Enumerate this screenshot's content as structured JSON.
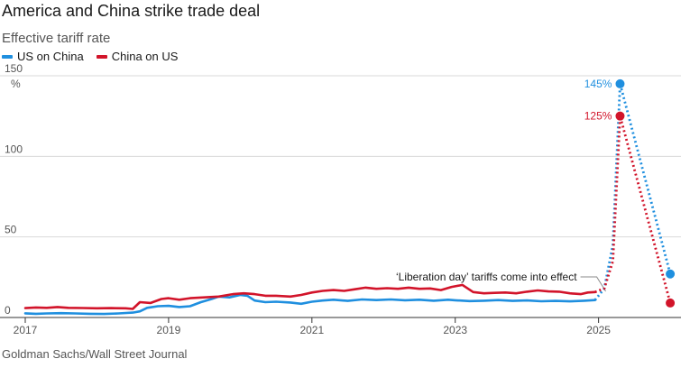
{
  "header": {
    "title": "America and China strike trade deal",
    "subtitle": "Effective tariff rate"
  },
  "footer": {
    "source": "Goldman Sachs/Wall Street Journal"
  },
  "colors": {
    "us_on_china": "#1f8fdf",
    "china_on_us": "#d2142a",
    "grid": "#d9d9d9",
    "axis": "#333333"
  },
  "chart_data": {
    "type": "line",
    "title": "America and China strike trade deal",
    "subtitle": "Effective tariff rate",
    "ylabel": "%",
    "xlim": [
      2017.0,
      2026.15
    ],
    "ylim": [
      0,
      150
    ],
    "yticks": [
      0,
      50,
      100,
      150
    ],
    "xticks": [
      2017,
      2019,
      2021,
      2023,
      2025
    ],
    "grid": true,
    "legend": "top-left",
    "series": [
      {
        "name": "US on China",
        "color": "#1f8fdf",
        "solid": [
          [
            2017.0,
            2.6
          ],
          [
            2017.15,
            2.3
          ],
          [
            2017.3,
            2.5
          ],
          [
            2017.5,
            2.7
          ],
          [
            2017.7,
            2.5
          ],
          [
            2017.9,
            2.3
          ],
          [
            2018.1,
            2.2
          ],
          [
            2018.3,
            2.5
          ],
          [
            2018.5,
            3.0
          ],
          [
            2018.6,
            3.8
          ],
          [
            2018.7,
            6.0
          ],
          [
            2018.85,
            7.0
          ],
          [
            2019.0,
            7.2
          ],
          [
            2019.15,
            6.5
          ],
          [
            2019.3,
            7.0
          ],
          [
            2019.45,
            9.5
          ],
          [
            2019.6,
            11.5
          ],
          [
            2019.7,
            13.0
          ],
          [
            2019.85,
            12.5
          ],
          [
            2020.0,
            14.0
          ],
          [
            2020.1,
            13.5
          ],
          [
            2020.2,
            10.5
          ],
          [
            2020.35,
            9.5
          ],
          [
            2020.5,
            9.8
          ],
          [
            2020.7,
            9.3
          ],
          [
            2020.85,
            8.5
          ],
          [
            2021.0,
            9.8
          ],
          [
            2021.15,
            10.5
          ],
          [
            2021.3,
            11.0
          ],
          [
            2021.5,
            10.3
          ],
          [
            2021.7,
            11.2
          ],
          [
            2021.9,
            10.8
          ],
          [
            2022.1,
            11.2
          ],
          [
            2022.3,
            10.7
          ],
          [
            2022.5,
            11.0
          ],
          [
            2022.7,
            10.4
          ],
          [
            2022.9,
            11.0
          ],
          [
            2023.0,
            10.7
          ],
          [
            2023.2,
            10.2
          ],
          [
            2023.4,
            10.4
          ],
          [
            2023.6,
            10.8
          ],
          [
            2023.8,
            10.3
          ],
          [
            2024.0,
            10.6
          ],
          [
            2024.2,
            10.1
          ],
          [
            2024.4,
            10.3
          ],
          [
            2024.6,
            10.0
          ],
          [
            2024.8,
            10.4
          ],
          [
            2024.95,
            10.8
          ]
        ],
        "projected": [
          [
            2024.95,
            10.8
          ],
          [
            2025.08,
            18.0
          ],
          [
            2025.2,
            45.0
          ],
          [
            2025.3,
            145
          ],
          [
            2026.0,
            27
          ]
        ],
        "labeled_points": [
          {
            "x": 2025.3,
            "y": 145,
            "label": "145%"
          },
          {
            "x": 2026.0,
            "y": 27,
            "label": ""
          }
        ]
      },
      {
        "name": "China on US",
        "color": "#d2142a",
        "solid": [
          [
            2017.0,
            5.8
          ],
          [
            2017.15,
            6.2
          ],
          [
            2017.3,
            6.0
          ],
          [
            2017.45,
            6.5
          ],
          [
            2017.6,
            6.0
          ],
          [
            2017.8,
            5.9
          ],
          [
            2018.0,
            5.7
          ],
          [
            2018.2,
            5.8
          ],
          [
            2018.4,
            5.7
          ],
          [
            2018.5,
            5.3
          ],
          [
            2018.6,
            9.5
          ],
          [
            2018.75,
            9.0
          ],
          [
            2018.9,
            11.5
          ],
          [
            2019.0,
            12.0
          ],
          [
            2019.15,
            11.0
          ],
          [
            2019.3,
            12.0
          ],
          [
            2019.5,
            12.5
          ],
          [
            2019.7,
            13.0
          ],
          [
            2019.9,
            14.5
          ],
          [
            2020.05,
            15.0
          ],
          [
            2020.2,
            14.5
          ],
          [
            2020.35,
            13.5
          ],
          [
            2020.5,
            13.5
          ],
          [
            2020.7,
            13.0
          ],
          [
            2020.85,
            14.0
          ],
          [
            2021.0,
            15.5
          ],
          [
            2021.15,
            16.5
          ],
          [
            2021.3,
            17.0
          ],
          [
            2021.45,
            16.5
          ],
          [
            2021.6,
            17.5
          ],
          [
            2021.75,
            18.5
          ],
          [
            2021.9,
            17.8
          ],
          [
            2022.05,
            18.2
          ],
          [
            2022.2,
            17.8
          ],
          [
            2022.35,
            18.5
          ],
          [
            2022.5,
            17.8
          ],
          [
            2022.65,
            18.0
          ],
          [
            2022.8,
            17.0
          ],
          [
            2022.95,
            19.0
          ],
          [
            2023.1,
            20.2
          ],
          [
            2023.25,
            15.8
          ],
          [
            2023.4,
            15.0
          ],
          [
            2023.55,
            15.3
          ],
          [
            2023.7,
            15.5
          ],
          [
            2023.85,
            15.0
          ],
          [
            2024.0,
            16.0
          ],
          [
            2024.15,
            16.8
          ],
          [
            2024.3,
            16.2
          ],
          [
            2024.45,
            16.0
          ],
          [
            2024.6,
            15.0
          ],
          [
            2024.75,
            14.5
          ],
          [
            2024.85,
            15.5
          ],
          [
            2024.95,
            15.8
          ]
        ],
        "projected": [
          [
            2024.95,
            15.8
          ],
          [
            2025.08,
            18.0
          ],
          [
            2025.2,
            35.0
          ],
          [
            2025.3,
            125
          ],
          [
            2026.0,
            9
          ]
        ],
        "labeled_points": [
          {
            "x": 2025.3,
            "y": 125,
            "label": "125%"
          },
          {
            "x": 2026.0,
            "y": 9,
            "label": ""
          }
        ]
      }
    ],
    "annotations": [
      {
        "text": "‘Liberation day’ tariffs come into effect",
        "x": 2025.1,
        "y": 14
      }
    ]
  }
}
